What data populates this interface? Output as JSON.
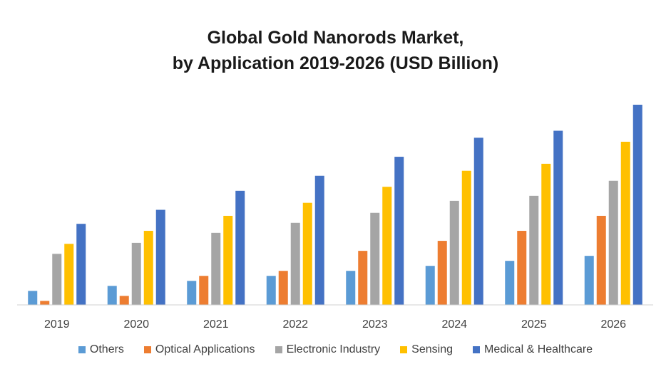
{
  "chart_data": {
    "type": "bar",
    "title_line1": "Global Gold Nanorods Market,",
    "title_line2": "by Application 2019-2026 (USD Billion)",
    "categories": [
      "2019",
      "2020",
      "2021",
      "2022",
      "2023",
      "2024",
      "2025",
      "2026"
    ],
    "series": [
      {
        "name": "Others",
        "color": "#5B9BD5",
        "values": [
          1.4,
          1.9,
          2.4,
          2.9,
          3.4,
          3.9,
          4.4,
          4.9
        ]
      },
      {
        "name": "Optical Applications",
        "color": "#ED7D31",
        "values": [
          0.4,
          0.9,
          2.9,
          3.4,
          5.4,
          6.4,
          7.4,
          8.9
        ]
      },
      {
        "name": "Electronic Industry",
        "color": "#A5A5A5",
        "values": [
          5.1,
          6.2,
          7.2,
          8.2,
          9.2,
          10.4,
          10.9,
          12.4
        ]
      },
      {
        "name": "Sensing",
        "color": "#FFC000",
        "values": [
          6.1,
          7.4,
          8.9,
          10.2,
          11.8,
          13.4,
          14.1,
          16.3
        ]
      },
      {
        "name": "Medical & Healthcare",
        "color": "#4472C4",
        "values": [
          8.1,
          9.5,
          11.4,
          12.9,
          14.8,
          16.7,
          17.4,
          20.0
        ]
      }
    ],
    "ylim": [
      0,
      20
    ],
    "grid": false,
    "legend_position": "bottom"
  }
}
